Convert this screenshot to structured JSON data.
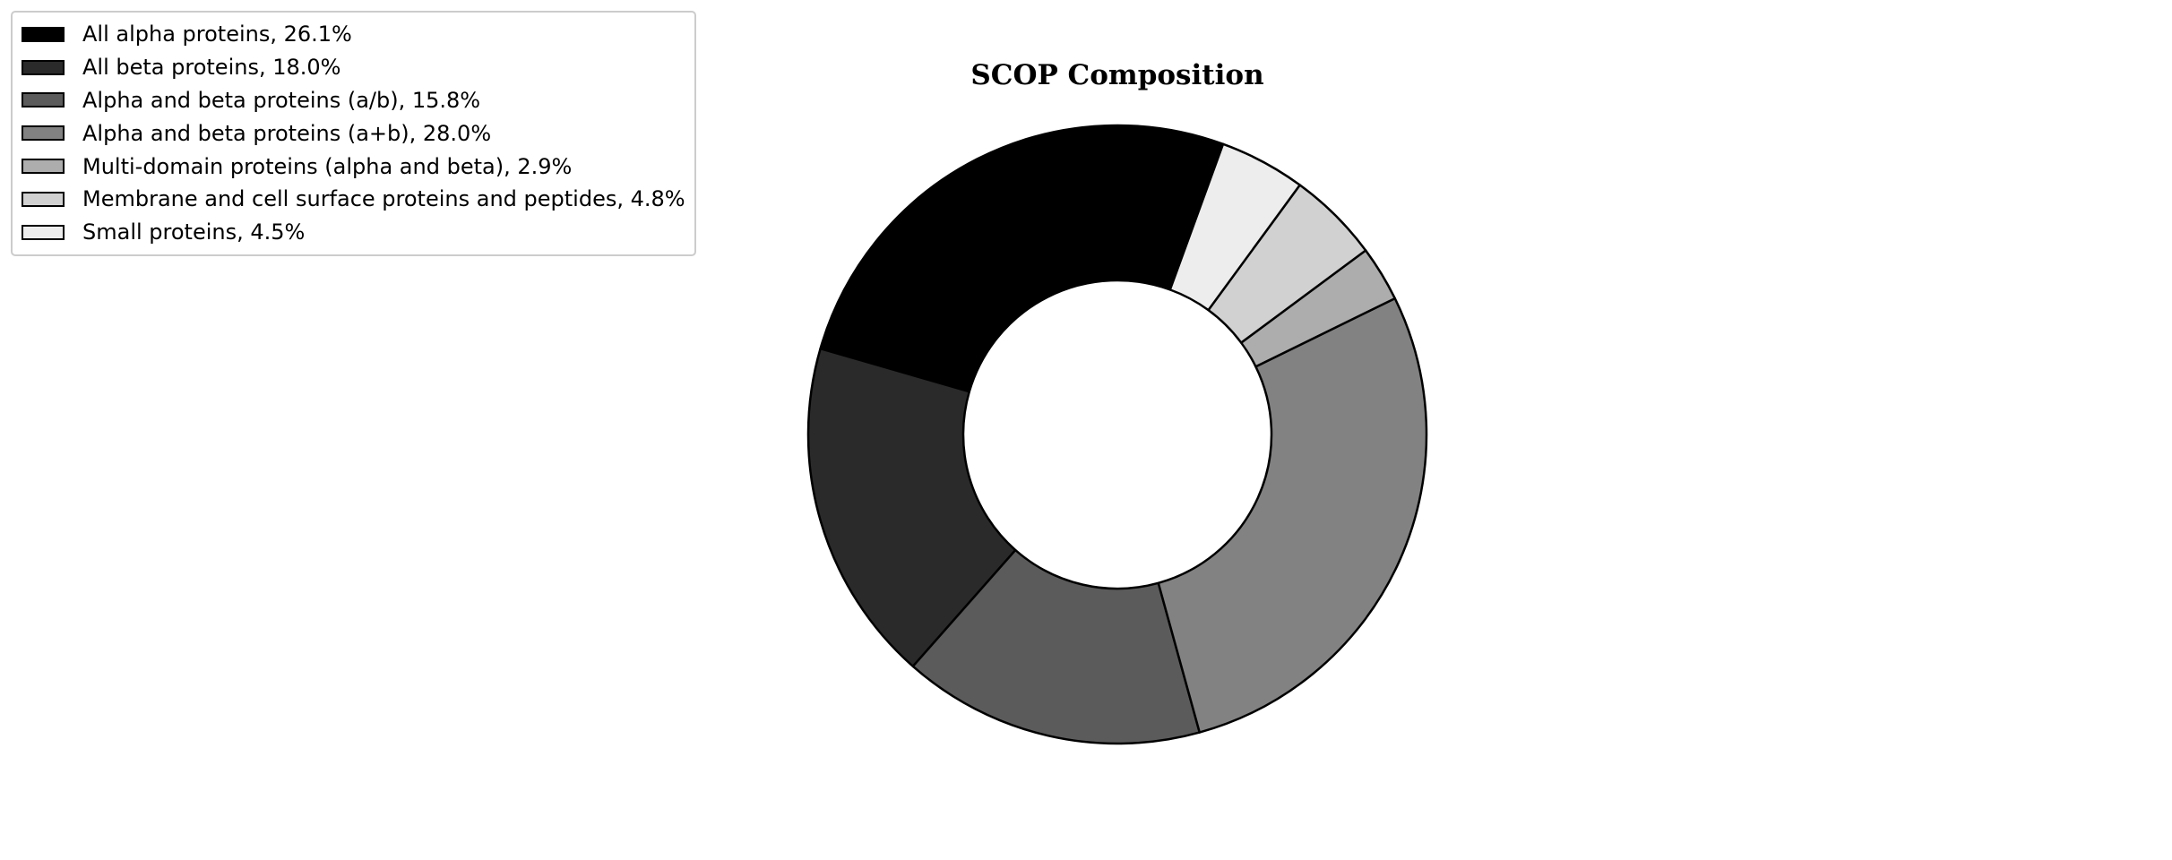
{
  "chart_data": {
    "type": "pie",
    "subtype": "donut",
    "title": "SCOP Composition",
    "legend_position": "top-left",
    "slices": [
      {
        "label": "All alpha proteins, 26.1%",
        "value": 26.1,
        "color": "#000000"
      },
      {
        "label": "All beta proteins, 18.0%",
        "value": 18.0,
        "color": "#2a2a2a"
      },
      {
        "label": "Alpha and beta proteins (a/b), 15.8%",
        "value": 15.8,
        "color": "#5b5b5b"
      },
      {
        "label": "Alpha and beta proteins (a+b), 28.0%",
        "value": 28.0,
        "color": "#828282"
      },
      {
        "label": "Multi-domain proteins (alpha and beta), 2.9%",
        "value": 2.9,
        "color": "#adadad"
      },
      {
        "label": "Membrane and cell surface proteins and peptides, 4.8%",
        "value": 4.8,
        "color": "#d1d1d1"
      },
      {
        "label": "Small proteins, 4.5%",
        "value": 4.5,
        "color": "#ededed"
      }
    ]
  }
}
